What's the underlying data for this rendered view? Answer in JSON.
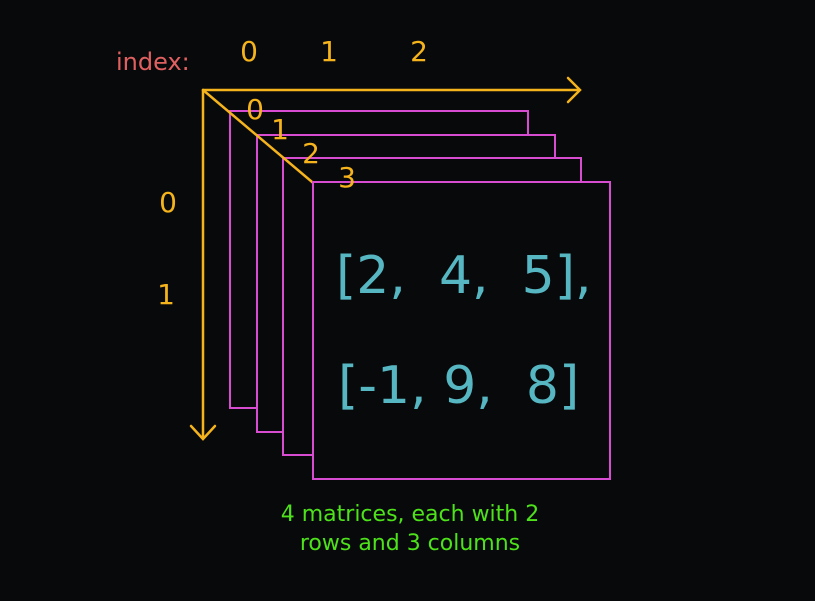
{
  "diagram": {
    "index_label": "index:",
    "column_indices": [
      "0",
      "1",
      "2"
    ],
    "row_indices": [
      "0",
      "1"
    ],
    "depth_indices": [
      "0",
      "1",
      "2",
      "3"
    ],
    "matrix_rows": [
      "[2,  4,  5],",
      "[-1, 9,  8]"
    ],
    "caption_lines": [
      "4 matrices, each with 2",
      "rows and 3 columns"
    ]
  },
  "colors": {
    "background": "#08090b",
    "axis": "#f5b31c",
    "index_label": "#e06060",
    "index_numbers": "#f5b31c",
    "frame": "#d74cd0",
    "matrix_text": "#56b6c2",
    "caption": "#4de21a"
  }
}
